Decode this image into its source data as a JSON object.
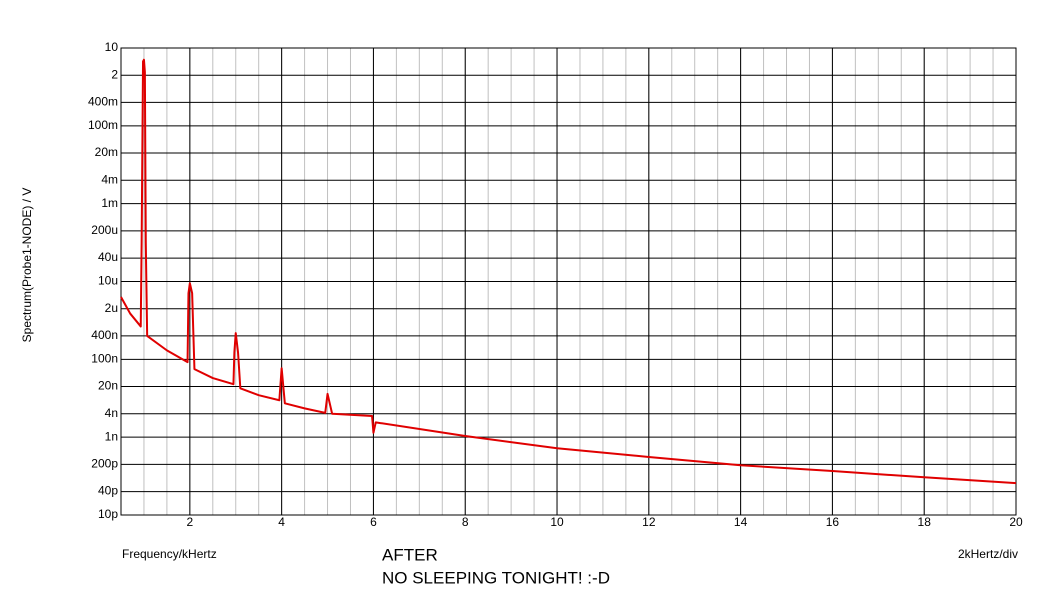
{
  "chart_data": {
    "type": "line",
    "ylabel": "Spectrum(Probe1-NODE) / V",
    "xlabel": "Frequency/kHertz",
    "scale_note": "2kHertz/div",
    "title": "AFTER",
    "subtitle": "NO SLEEPING TONIGHT! :-D",
    "yscale": "log",
    "grid": true,
    "xlim": [
      0.5,
      20
    ],
    "xticks": [
      2,
      4,
      6,
      8,
      10,
      12,
      14,
      16,
      18,
      20
    ],
    "ylim": [
      1e-11,
      10
    ],
    "yticks": [
      10,
      {
        "value": 2,
        "label": "2"
      },
      {
        "value": 0.4,
        "label": "400m"
      },
      {
        "value": 0.1,
        "label": "100m"
      },
      {
        "value": 0.02,
        "label": "20m"
      },
      {
        "value": 0.004,
        "label": "4m"
      },
      {
        "value": 0.001,
        "label": "1m"
      },
      {
        "value": 0.0002,
        "label": "200u"
      },
      {
        "value": 4e-05,
        "label": "40u"
      },
      {
        "value": 1e-05,
        "label": "10u"
      },
      {
        "value": 2e-06,
        "label": "2u"
      },
      {
        "value": 4e-07,
        "label": "400n"
      },
      {
        "value": 1e-07,
        "label": "100n"
      },
      {
        "value": 2e-08,
        "label": "20n"
      },
      {
        "value": 4e-09,
        "label": "4n"
      },
      {
        "value": 1e-09,
        "label": "1n"
      },
      {
        "value": 2e-10,
        "label": "200p"
      },
      {
        "value": 4e-11,
        "label": "40p"
      },
      {
        "value": 1e-11,
        "label": "10p"
      }
    ],
    "x": [
      0.5,
      0.7,
      0.93,
      0.95,
      0.98,
      1.0,
      1.02,
      1.04,
      1.07,
      1.5,
      1.95,
      1.97,
      2.0,
      2.05,
      2.1,
      2.5,
      2.95,
      2.97,
      3.0,
      3.05,
      3.1,
      3.5,
      3.95,
      4.0,
      4.07,
      4.5,
      4.95,
      5.0,
      5.1,
      5.97,
      6.0,
      6.05,
      8,
      10,
      12,
      14,
      16,
      18,
      20
    ],
    "series": [
      {
        "color": "#e00000",
        "values": [
          4e-06,
          1.5e-06,
          7e-07,
          0.0001,
          4.5,
          5,
          2.4,
          0.0001,
          4e-07,
          1.7e-07,
          8.5e-08,
          5e-06,
          9e-06,
          5e-06,
          5.6e-08,
          3.3e-08,
          2.3e-08,
          1.5e-07,
          4.7e-07,
          1.5e-07,
          1.8e-08,
          1.2e-08,
          8.9e-09,
          5.9e-08,
          7.4e-09,
          5.5e-09,
          4.2e-09,
          1.3e-08,
          4e-09,
          3.5e-09,
          1.3e-09,
          2.4e-09,
          1.07e-09,
          5.2e-10,
          3.1e-10,
          1.9e-10,
          1.35e-10,
          9.3e-11,
          6.6e-11
        ]
      }
    ]
  }
}
